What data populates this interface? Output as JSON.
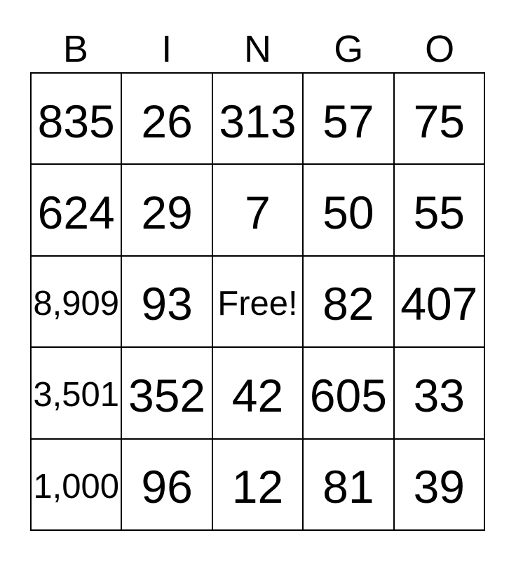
{
  "title": "BINGO",
  "header": {
    "letters": [
      "B",
      "I",
      "N",
      "G",
      "O"
    ]
  },
  "card": {
    "rows": [
      [
        "835",
        "26",
        "313",
        "57",
        "75"
      ],
      [
        "624",
        "29",
        "7",
        "50",
        "55"
      ],
      [
        "8,909",
        "93",
        "Free!",
        "82",
        "407"
      ],
      [
        "3,501",
        "352",
        "42",
        "605",
        "33"
      ],
      [
        "1,000",
        "96",
        "12",
        "81",
        "39"
      ]
    ],
    "free_cell": {
      "row": 2,
      "col": 2,
      "label": "Free!"
    }
  },
  "colors": {
    "text": "#000000",
    "border": "#000000",
    "background": "#ffffff"
  }
}
